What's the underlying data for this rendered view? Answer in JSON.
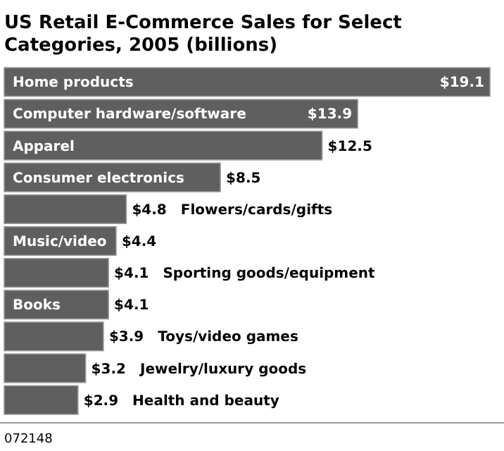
{
  "chart_data": {
    "type": "bar",
    "orientation": "horizontal",
    "title": "US Retail E-Commerce Sales for Select Categories, 2005 (billions)",
    "categories": [
      "Home products",
      "Computer hardware/software",
      "Apparel",
      "Consumer electronics",
      "Flowers/cards/gifts",
      "Music/video",
      "Sporting goods/equipment",
      "Books",
      "Toys/video games",
      "Jewelry/luxury goods",
      "Health and beauty"
    ],
    "values": [
      19.1,
      13.9,
      12.5,
      8.5,
      4.8,
      4.4,
      4.1,
      4.1,
      3.9,
      3.2,
      2.9
    ],
    "value_labels": [
      "$19.1",
      "$13.9",
      "$12.5",
      "$8.5",
      "$4.8",
      "$4.4",
      "$4.1",
      "$4.1",
      "$3.9",
      "$3.2",
      "$2.9"
    ],
    "color": "#5f5f5f",
    "annotations": [
      "072148"
    ]
  }
}
